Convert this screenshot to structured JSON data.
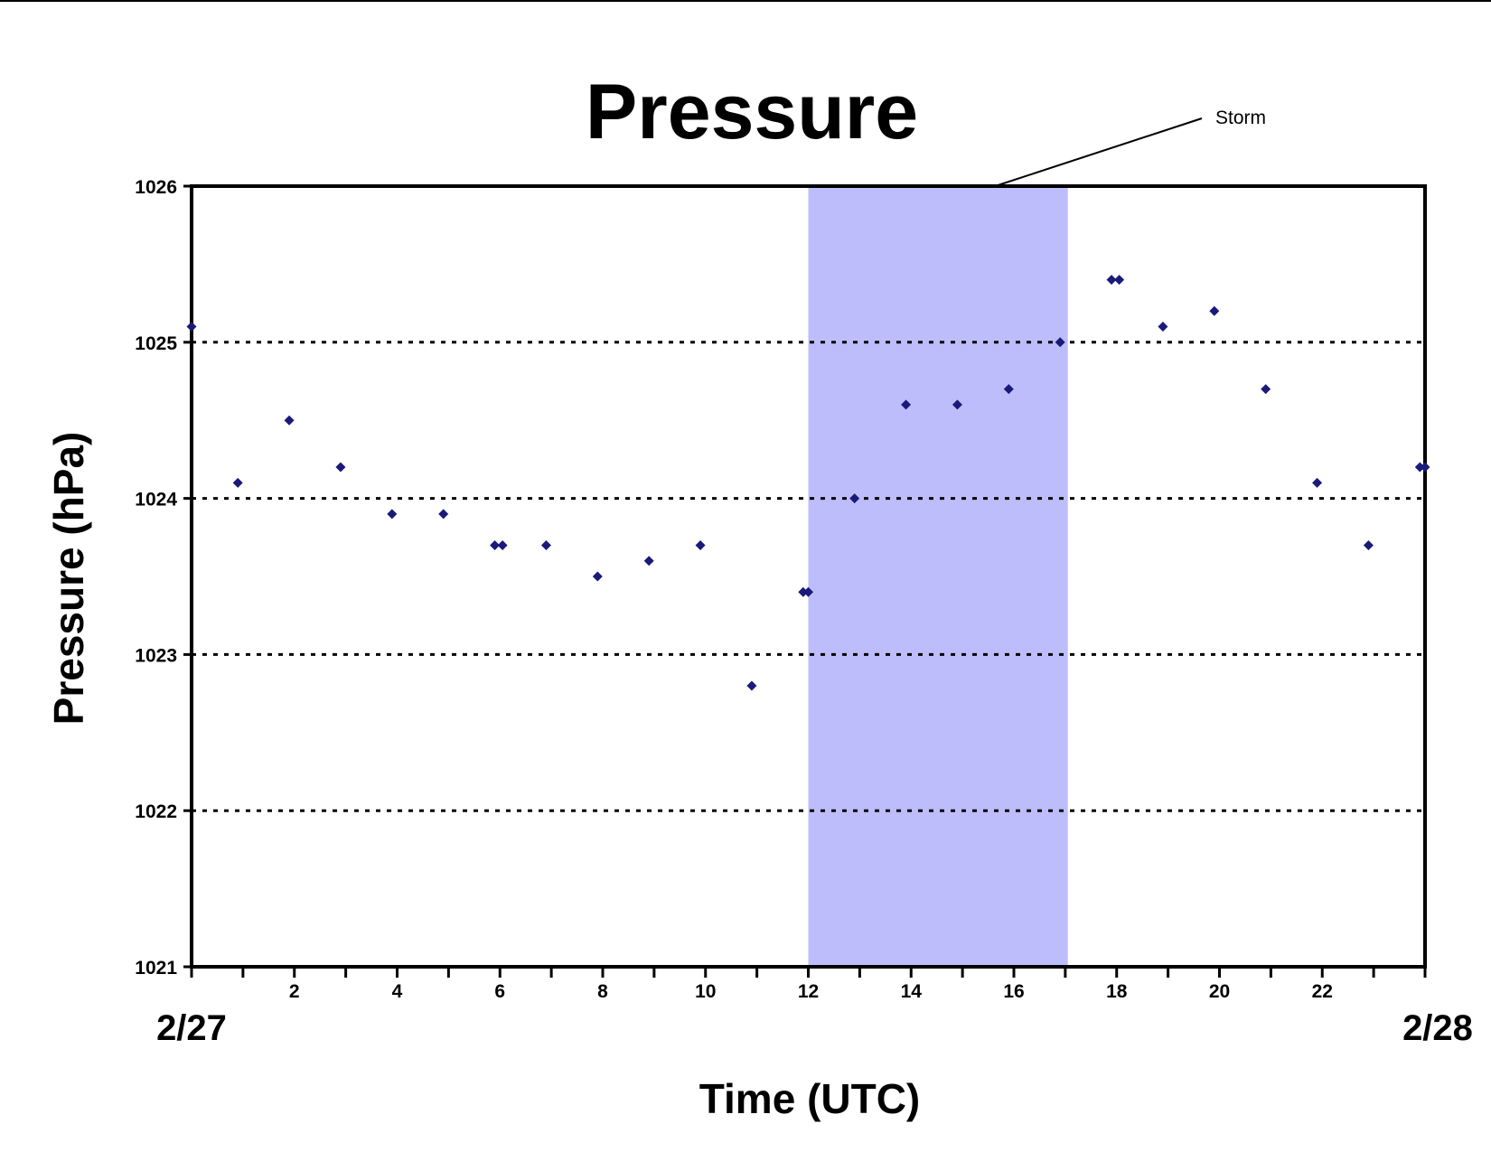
{
  "chart_data": {
    "type": "scatter",
    "title": "Pressure",
    "xlabel": "Time (UTC)",
    "ylabel": "Pressure (hPa)",
    "xlim": [
      0,
      24
    ],
    "ylim": [
      1021,
      1026
    ],
    "x_ticks": [
      2,
      4,
      6,
      8,
      10,
      12,
      14,
      16,
      18,
      20,
      22
    ],
    "y_ticks": [
      1021,
      1022,
      1023,
      1024,
      1025,
      1026
    ],
    "date_labels": [
      {
        "x": 0,
        "label": "2/27"
      },
      {
        "x": 24,
        "label": "2/28"
      }
    ],
    "grid": "horizontal dotted at 1022, 1023, 1024, 1025",
    "shaded_region": {
      "x_start": 12,
      "x_end": 17.05,
      "color": "#bdbdfb",
      "label": "Storm"
    },
    "marker_color": "#1a1a7a",
    "series": [
      {
        "points": [
          [
            0.0,
            1025.1
          ],
          [
            0.9,
            1024.1
          ],
          [
            1.9,
            1024.5
          ],
          [
            2.9,
            1024.2
          ],
          [
            3.9,
            1023.9
          ],
          [
            4.9,
            1023.9
          ],
          [
            5.9,
            1023.7
          ],
          [
            6.05,
            1023.7
          ],
          [
            6.9,
            1023.7
          ],
          [
            7.9,
            1023.5
          ],
          [
            8.9,
            1023.6
          ],
          [
            9.9,
            1023.7
          ],
          [
            10.9,
            1022.8
          ],
          [
            11.9,
            1023.4
          ],
          [
            12.0,
            1023.4
          ],
          [
            12.9,
            1024.0
          ],
          [
            13.9,
            1024.6
          ],
          [
            14.9,
            1024.6
          ],
          [
            15.9,
            1024.7
          ],
          [
            16.9,
            1025.0
          ],
          [
            17.9,
            1025.4
          ],
          [
            18.05,
            1025.4
          ],
          [
            18.9,
            1025.1
          ],
          [
            19.9,
            1025.2
          ],
          [
            20.9,
            1024.7
          ],
          [
            21.9,
            1024.1
          ],
          [
            22.9,
            1023.7
          ],
          [
            23.9,
            1024.2
          ],
          [
            24.0,
            1024.2
          ]
        ]
      }
    ]
  }
}
